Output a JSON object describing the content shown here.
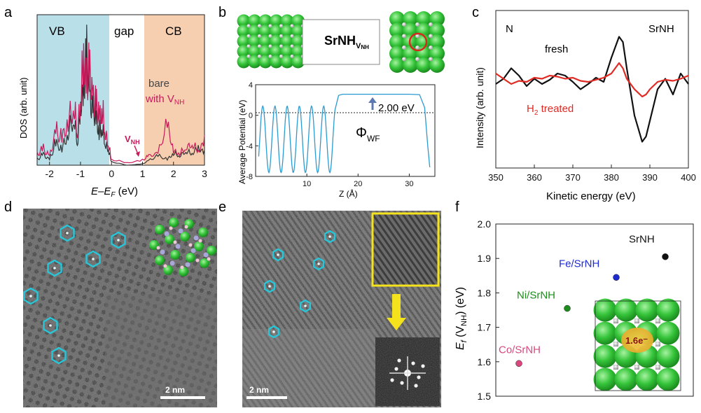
{
  "panel_labels": {
    "a": "a",
    "b": "b",
    "c": "c",
    "d": "d",
    "e": "e",
    "f": "f"
  },
  "colors": {
    "vb": "#b9dfe9",
    "cb": "#f6cfb0",
    "bare": "#333333",
    "vnh": "#c8195a",
    "cyan": "#27c6d9",
    "sr": "#2fc232",
    "red": "#e02a23",
    "blue_arrow": "#5b78b0",
    "pot": "#2c9bd1",
    "co": "#d9477e",
    "ni": "#1c8d1c",
    "fe": "#1d2bd0"
  },
  "panel_a": {
    "ylabel": "DOS (arb. unit)",
    "xlabel_parts": [
      "E",
      "–",
      "E",
      "F",
      " (eV)"
    ],
    "regions": [
      "VB",
      "gap",
      "CB"
    ],
    "legend_bare": "bare",
    "legend_with": "with V",
    "legend_sub": "NH",
    "vnh_label": "V",
    "vnh_sub": "NH",
    "xticks": [
      "-2",
      "-1",
      "0",
      "1",
      "2",
      "3"
    ]
  },
  "panel_b": {
    "title": "SrNH",
    "title_sub": "V",
    "title_subsub": "NH",
    "ylabel": "Average Potential (eV)",
    "xlabel": "Z (Å)",
    "yticks": [
      "4",
      "0",
      "-4",
      "-8"
    ],
    "xticks": [
      "10",
      "20",
      "30"
    ],
    "annotation": "2.00 eV",
    "phi": "Φ",
    "phi_sub": "WF"
  },
  "panel_c": {
    "ylabel": "Intensity  (arb. unit)",
    "xlabel": "Kinetic energy (eV)",
    "element": "N",
    "material": "SrNH",
    "fresh": "fresh",
    "h2": "H",
    "h2_sub": "2",
    "h2_rest": " treated",
    "xticks": [
      "350",
      "360",
      "370",
      "380",
      "390",
      "400"
    ]
  },
  "panel_d": {
    "scale": "2 nm"
  },
  "panel_e": {
    "scale": "2 nm"
  },
  "panel_f": {
    "ylabel_E": "E",
    "ylabel_f": "f",
    "ylabel_rest": " (V",
    "ylabel_sub": "NH",
    "ylabel_end": ") (eV)",
    "yticks": [
      "2.0",
      "1.9",
      "1.8",
      "1.7",
      "1.6",
      "1.5"
    ],
    "charge": "1.6e⁻"
  },
  "chart_data": [
    {
      "type": "line",
      "title": "a",
      "xlabel": "E–EF (eV)",
      "ylabel": "DOS (arb. unit)",
      "xlim": [
        -2.4,
        3.0
      ],
      "series": [
        {
          "name": "bare",
          "x": [
            -2.4,
            -2.2,
            -2.0,
            -1.8,
            -1.6,
            -1.4,
            -1.2,
            -1.1,
            -1.0,
            -0.9,
            -0.8,
            -0.7,
            -0.6,
            -0.5,
            -0.4,
            -0.3,
            -0.2,
            -0.1,
            0.0,
            0.5,
            1.0,
            1.2,
            1.5,
            1.8,
            2.0,
            2.2,
            2.4,
            2.6,
            2.8,
            3.0
          ],
          "y": [
            0.05,
            0.1,
            0.05,
            0.2,
            0.15,
            0.3,
            0.45,
            0.2,
            0.55,
            0.7,
            0.98,
            0.6,
            0.5,
            0.45,
            0.3,
            0.35,
            0.2,
            0.15,
            0.03,
            0.0,
            0.01,
            0.04,
            0.08,
            0.05,
            0.1,
            0.08,
            0.12,
            0.1,
            0.15,
            0.1
          ]
        },
        {
          "name": "with VNH",
          "x": [
            -2.4,
            -2.2,
            -2.0,
            -1.8,
            -1.6,
            -1.4,
            -1.2,
            -1.1,
            -1.0,
            -0.9,
            -0.8,
            -0.7,
            -0.6,
            -0.5,
            -0.4,
            -0.3,
            -0.2,
            -0.1,
            0.0,
            0.5,
            1.0,
            1.2,
            1.5,
            1.8,
            2.0,
            2.2,
            2.4,
            2.6,
            2.8,
            3.0
          ],
          "y": [
            0.1,
            0.15,
            0.08,
            0.3,
            0.25,
            0.4,
            0.55,
            0.3,
            0.6,
            1.0,
            0.75,
            0.85,
            0.6,
            0.55,
            0.45,
            0.5,
            0.3,
            0.2,
            0.05,
            0.02,
            0.04,
            0.08,
            0.1,
            0.35,
            0.12,
            0.1,
            0.15,
            0.18,
            0.12,
            0.2
          ]
        }
      ],
      "regions": [
        {
          "name": "VB",
          "from": -2.4,
          "to": 0
        },
        {
          "name": "gap",
          "from": 0,
          "to": 1.1
        },
        {
          "name": "CB",
          "from": 1.1,
          "to": 3.0
        }
      ]
    },
    {
      "type": "line",
      "title": "b",
      "xlabel": "Z (Å)",
      "ylabel": "Average Potential (eV)",
      "xlim": [
        0,
        35
      ],
      "ylim": [
        -8,
        4
      ],
      "series": [
        {
          "name": "potential",
          "x": [
            0,
            1,
            2,
            3,
            4,
            5,
            6,
            7,
            8,
            9,
            10,
            11,
            12,
            13,
            14,
            15,
            16,
            17,
            20,
            25,
            30,
            32,
            33,
            34
          ],
          "y": [
            -7.5,
            1.2,
            -7.5,
            1.2,
            -7.5,
            1.2,
            -7.5,
            1.2,
            -7.5,
            1.2,
            -7.5,
            1.2,
            -7.5,
            1.2,
            -7.5,
            -2.0,
            2.6,
            2.6,
            2.6,
            2.6,
            2.6,
            2.6,
            0.5,
            -7.0
          ]
        }
      ],
      "reference_line": 0.6,
      "annotation": "2.00 eV"
    },
    {
      "type": "line",
      "title": "c",
      "xlabel": "Kinetic energy (eV)",
      "ylabel": "Intensity (arb. unit)",
      "xlim": [
        350,
        400
      ],
      "series": [
        {
          "name": "fresh",
          "x": [
            350,
            352,
            354,
            356,
            358,
            360,
            362,
            364,
            366,
            368,
            370,
            372,
            374,
            376,
            378,
            380,
            382,
            383,
            384,
            386,
            388,
            389,
            390,
            392,
            394,
            396,
            398,
            400
          ],
          "y": [
            0.0,
            0.05,
            0.15,
            0.08,
            -0.02,
            0.05,
            0.0,
            0.04,
            0.1,
            0.08,
            0.02,
            -0.05,
            0.0,
            0.06,
            0.02,
            0.25,
            0.45,
            0.4,
            0.15,
            -0.3,
            -0.55,
            -0.5,
            -0.35,
            -0.05,
            0.05,
            -0.1,
            0.1,
            0.0
          ]
        },
        {
          "name": "H2 treated",
          "x": [
            350,
            352,
            354,
            356,
            358,
            360,
            362,
            364,
            366,
            368,
            370,
            372,
            374,
            376,
            378,
            380,
            382,
            383,
            384,
            386,
            388,
            389,
            390,
            392,
            394,
            396,
            398,
            400
          ],
          "y": [
            0.1,
            0.05,
            0.0,
            0.03,
            0.02,
            0.06,
            0.05,
            0.08,
            0.07,
            0.05,
            0.06,
            0.03,
            0.02,
            0.04,
            0.06,
            0.1,
            0.2,
            0.15,
            0.05,
            -0.05,
            -0.12,
            -0.1,
            -0.05,
            0.02,
            0.04,
            0.03,
            0.05,
            0.08
          ]
        }
      ]
    },
    {
      "type": "scatter",
      "title": "f",
      "ylabel": "Ef (VNH) (eV)",
      "ylim": [
        1.5,
        2.0
      ],
      "points": [
        {
          "label": "Co/SrNH",
          "value": 1.595,
          "color": "#d9477e"
        },
        {
          "label": "Ni/SrNH",
          "value": 1.755,
          "color": "#1c8d1c"
        },
        {
          "label": "Fe/SrNH",
          "value": 1.845,
          "color": "#1d2bd0"
        },
        {
          "label": "SrNH",
          "value": 1.905,
          "color": "#111111"
        }
      ]
    }
  ]
}
